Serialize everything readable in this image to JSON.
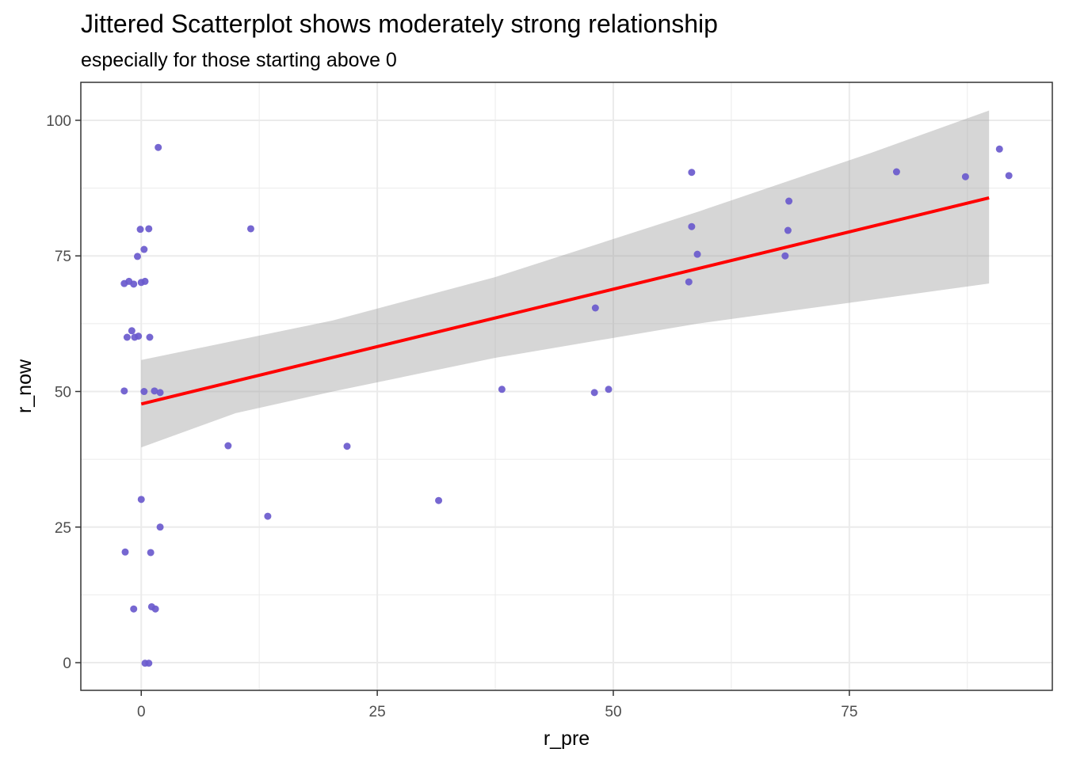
{
  "chart_data": {
    "type": "scatter",
    "title": "Jittered Scatterplot shows moderately strong relationship",
    "subtitle": "especially for those starting above 0",
    "xlabel": "r_pre",
    "ylabel": "r_now",
    "xlim": [
      -6.4,
      96.5
    ],
    "ylim": [
      -5.1,
      107.0
    ],
    "x_ticks": [
      0,
      25,
      50,
      75
    ],
    "x_minor": [
      12.5,
      37.5,
      62.5,
      87.5
    ],
    "y_ticks": [
      0,
      25,
      50,
      75,
      100
    ],
    "y_minor": [
      12.5,
      37.5,
      62.5,
      87.5
    ],
    "grid": true,
    "legend": "none",
    "point_color": "#6A5ACD",
    "line_color": "#FF0000",
    "band_color": "#999999",
    "points": [
      {
        "x": 1.8,
        "y": 95.0
      },
      {
        "x": 0.8,
        "y": 80.0
      },
      {
        "x": -0.1,
        "y": 79.9
      },
      {
        "x": 0.3,
        "y": 76.2
      },
      {
        "x": -0.4,
        "y": 74.9
      },
      {
        "x": -1.8,
        "y": 69.9
      },
      {
        "x": -1.3,
        "y": 70.3
      },
      {
        "x": -0.8,
        "y": 69.8
      },
      {
        "x": 0.0,
        "y": 70.1
      },
      {
        "x": 0.4,
        "y": 70.3
      },
      {
        "x": -1.0,
        "y": 61.2
      },
      {
        "x": -1.5,
        "y": 60.0
      },
      {
        "x": -0.7,
        "y": 60.0
      },
      {
        "x": -0.3,
        "y": 60.2
      },
      {
        "x": 0.9,
        "y": 60.0
      },
      {
        "x": -1.8,
        "y": 50.1
      },
      {
        "x": 0.3,
        "y": 50.0
      },
      {
        "x": 1.4,
        "y": 50.1
      },
      {
        "x": 2.0,
        "y": 49.8
      },
      {
        "x": 0.0,
        "y": 30.1
      },
      {
        "x": 2.0,
        "y": 25.0
      },
      {
        "x": -1.7,
        "y": 20.4
      },
      {
        "x": 1.0,
        "y": 20.3
      },
      {
        "x": -0.8,
        "y": 9.9
      },
      {
        "x": 1.1,
        "y": 10.3
      },
      {
        "x": 1.5,
        "y": 9.9
      },
      {
        "x": 0.4,
        "y": -0.1
      },
      {
        "x": 0.8,
        "y": -0.1
      },
      {
        "x": 11.6,
        "y": 80.0
      },
      {
        "x": 9.2,
        "y": 40.0
      },
      {
        "x": 13.4,
        "y": 27.0
      },
      {
        "x": 21.8,
        "y": 39.9
      },
      {
        "x": 31.5,
        "y": 29.9
      },
      {
        "x": 38.2,
        "y": 50.4
      },
      {
        "x": 48.1,
        "y": 65.4
      },
      {
        "x": 48.0,
        "y": 49.8
      },
      {
        "x": 49.5,
        "y": 50.4
      },
      {
        "x": 58.3,
        "y": 90.4
      },
      {
        "x": 58.3,
        "y": 80.4
      },
      {
        "x": 58.9,
        "y": 75.3
      },
      {
        "x": 58.0,
        "y": 70.2
      },
      {
        "x": 68.6,
        "y": 85.1
      },
      {
        "x": 68.5,
        "y": 79.7
      },
      {
        "x": 68.2,
        "y": 75.0
      },
      {
        "x": 80.0,
        "y": 90.5
      },
      {
        "x": 90.9,
        "y": 94.7
      },
      {
        "x": 87.3,
        "y": 89.6
      },
      {
        "x": 91.9,
        "y": 89.8
      }
    ],
    "fit_line": {
      "method": "lm",
      "x": [
        0,
        89.8
      ],
      "y": [
        47.7,
        85.7
      ]
    },
    "confidence_band": [
      {
        "x": 0,
        "lower": 39.7,
        "upper": 55.8
      },
      {
        "x": 10,
        "lower": 46.0,
        "upper": 59.4
      },
      {
        "x": 20.3,
        "lower": 50.0,
        "upper": 63.1
      },
      {
        "x": 37.5,
        "lower": 56.2,
        "upper": 71.1
      },
      {
        "x": 58.9,
        "lower": 62.5,
        "upper": 83.1
      },
      {
        "x": 77.3,
        "lower": 66.9,
        "upper": 94.0
      },
      {
        "x": 89.8,
        "lower": 69.9,
        "upper": 101.8
      }
    ]
  }
}
